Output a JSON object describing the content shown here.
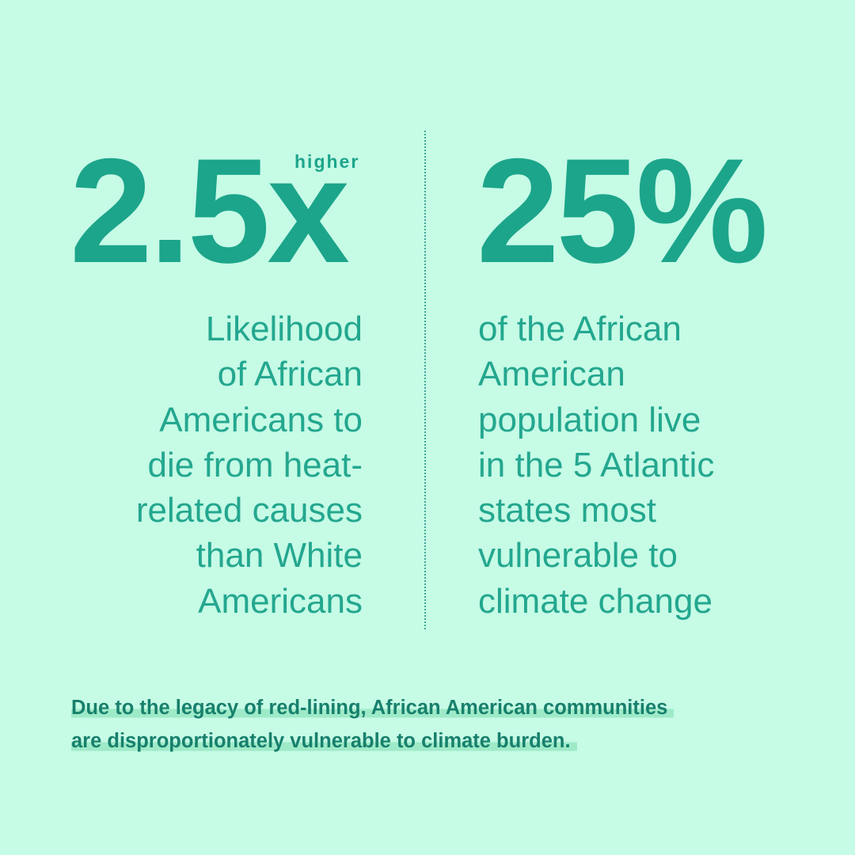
{
  "stats": [
    {
      "value": "2.5x",
      "qualifier": "higher",
      "description": [
        "Likelihood",
        "of African",
        "Americans to",
        "die from heat-",
        "related causes",
        "than White",
        "Americans"
      ]
    },
    {
      "value": "25%",
      "description": [
        "of the African",
        "American",
        "population live",
        "in the 5 Atlantic",
        "states most",
        "vulnerable to",
        "climate change"
      ]
    }
  ],
  "footnote": [
    "Due to the legacy of red-lining, African American communities",
    "are disproportionately vulnerable to climate burden."
  ]
}
